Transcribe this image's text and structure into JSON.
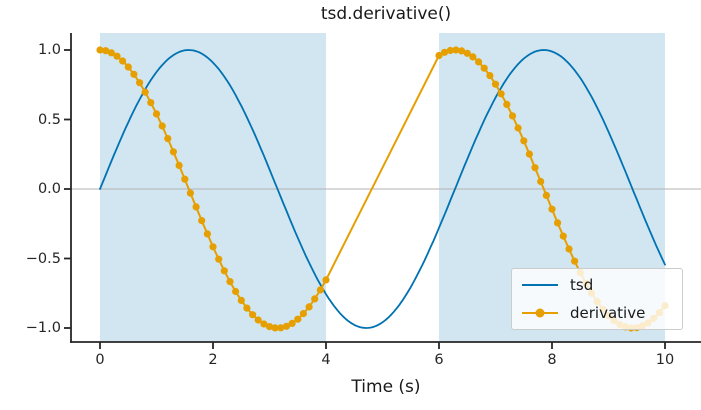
{
  "chart_data": {
    "type": "line",
    "title": "tsd.derivative()",
    "xlabel": "Time (s)",
    "ylabel": "",
    "xlim": [
      -0.51,
      10.64
    ],
    "ylim": [
      -1.1,
      1.12
    ],
    "grid": false,
    "xticks": [
      {
        "value": 0,
        "label": "0"
      },
      {
        "value": 2,
        "label": "2"
      },
      {
        "value": 4,
        "label": "4"
      },
      {
        "value": 6,
        "label": "6"
      },
      {
        "value": 8,
        "label": "8"
      },
      {
        "value": 10,
        "label": "10"
      }
    ],
    "yticks": [
      {
        "value": 1.0,
        "label": "1.0"
      },
      {
        "value": 0.5,
        "label": "0.5"
      },
      {
        "value": 0.0,
        "label": "0.0"
      },
      {
        "value": -0.5,
        "label": "−0.5"
      },
      {
        "value": -1.0,
        "label": "−1.0"
      }
    ],
    "zero_line": {
      "color": "#b3b3b3",
      "y": 0
    },
    "shaded_spans": [
      {
        "x0": 0,
        "x1": 4
      },
      {
        "x0": 6,
        "x1": 10
      }
    ],
    "span_color": "#0072B2",
    "span_alpha": 0.18,
    "series": [
      {
        "name": "tsd",
        "color": "#0072B2",
        "formula": "sin(t)",
        "segments": [
          [
            0,
            10
          ]
        ],
        "sample_step": 0.05,
        "markers": false,
        "marker_radius": 0,
        "linewidth": 1.8,
        "key_points": {
          "t": [
            0,
            1.571,
            3.142,
            4.712,
            6.283,
            7.854,
            9.425,
            10
          ],
          "y": [
            0,
            1,
            0,
            -1,
            0,
            1,
            0,
            -0.544
          ]
        }
      },
      {
        "name": "derivative",
        "color": "#E69F00",
        "formula": "cos(t)",
        "segments": [
          [
            0,
            4
          ],
          [
            6,
            10
          ]
        ],
        "sample_step": 0.1,
        "markers": true,
        "marker_radius": 3.6,
        "linewidth": 2,
        "gap_connected": true,
        "key_points": {
          "t": [
            0,
            3.142,
            4,
            6,
            6.283,
            9.425,
            10
          ],
          "y": [
            1,
            -1,
            -0.654,
            0.96,
            1,
            -1,
            -0.839
          ]
        }
      }
    ],
    "legend": {
      "position": "lower right",
      "items": [
        {
          "label": "tsd"
        },
        {
          "label": "derivative"
        }
      ]
    }
  }
}
